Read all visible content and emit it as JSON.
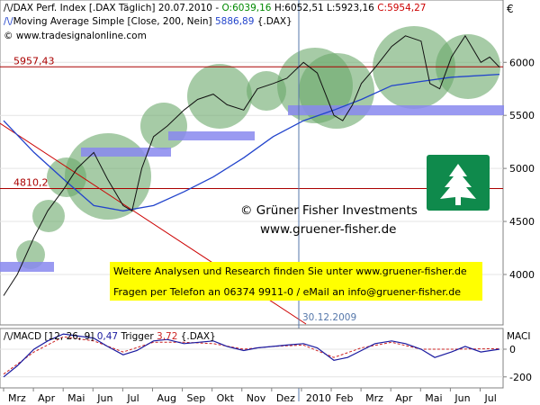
{
  "main_chart": {
    "legend": {
      "line1": {
        "prefix": "DAX Perf. Index [.DAX Täglich] 20.07.2010 - ",
        "open": "O:6039,16",
        "high": " H:6052,51",
        "low": " L:5923,16",
        "close": " C:5954,27"
      },
      "line2": {
        "label": "Moving Average Simple [Close, 200, Nein] ",
        "value": "5886,89",
        "suffix": " {.DAX}"
      },
      "line3": "© www.tradesignalonline.com"
    },
    "currency_symbol": "€",
    "level_labels": [
      "5957,43",
      "4810,2"
    ],
    "watermark": {
      "line1": "© Grüner Fisher Investments",
      "line2": "www.gruener-fisher.de"
    },
    "ad_box": {
      "line1": "Weitere Analysen und Research finden Sie unter www.gruener-fisher.de",
      "line2": "Fragen per Telefon an 06374 9911-0 / eMail an info@gruener-fisher.de"
    },
    "date_marker": "30.12.2009",
    "colors": {
      "price_line": "#111111",
      "moving_average": "#2244cc",
      "trend_line": "#cc0000",
      "level_line": "#aa0000",
      "circle_fill": "#6aa86a",
      "support_band": "#8888ee",
      "ad_box_fill": "#ffff00",
      "logo_green": "#0f8a4c"
    }
  },
  "macd_panel": {
    "legend": {
      "prefix": "MACD [12, 26, 9] ",
      "macd": "0,47",
      "trigger_label": " Trigger ",
      "trigger": "3,72",
      "suffix": " {.DAX}"
    },
    "title_right": "MACI",
    "colors": {
      "macd": "#1a1aa0",
      "trigger": "#cc2222"
    }
  },
  "x_axis": {
    "labels": [
      "Mrz",
      "Apr",
      "Mai",
      "Jun",
      "Jul",
      "Aug",
      "Sep",
      "Okt",
      "Nov",
      "Dez",
      "2010",
      "Feb",
      "Mrz",
      "Apr",
      "Mai",
      "Jun",
      "Jul"
    ]
  },
  "chart_data": {
    "type": "line",
    "title": "DAX Perf. Index [.DAX Täglich]",
    "y_axis_ticks": [
      4000,
      4500,
      5000,
      5500,
      6000
    ],
    "ylim": [
      3550,
      6520
    ],
    "price_series": {
      "name": "DAX Perf. Index",
      "x": [
        "2009-03-01",
        "2009-03-15",
        "2009-04-01",
        "2009-04-15",
        "2009-05-01",
        "2009-05-15",
        "2009-06-01",
        "2009-06-15",
        "2009-07-01",
        "2009-07-10",
        "2009-07-20",
        "2009-08-01",
        "2009-08-15",
        "2009-09-01",
        "2009-09-15",
        "2009-10-01",
        "2009-10-15",
        "2009-11-01",
        "2009-11-15",
        "2009-12-01",
        "2009-12-15",
        "2010-01-01",
        "2010-01-15",
        "2010-02-01",
        "2010-02-10",
        "2010-02-20",
        "2010-03-01",
        "2010-03-15",
        "2010-04-01",
        "2010-04-15",
        "2010-05-01",
        "2010-05-10",
        "2010-05-20",
        "2010-06-01",
        "2010-06-15",
        "2010-07-01",
        "2010-07-10",
        "2010-07-20"
      ],
      "values": [
        3800,
        4000,
        4350,
        4600,
        4800,
        5000,
        5150,
        4900,
        4650,
        4600,
        5000,
        5300,
        5400,
        5550,
        5650,
        5700,
        5600,
        5550,
        5750,
        5800,
        5850,
        6000,
        5900,
        5500,
        5450,
        5600,
        5800,
        5950,
        6150,
        6250,
        6200,
        5800,
        5750,
        6050,
        6250,
        6000,
        6050,
        5954
      ]
    },
    "moving_average": {
      "name": "Moving Average Simple [Close, 200, Nein]",
      "x": [
        "2009-03-01",
        "2009-04-01",
        "2009-05-01",
        "2009-06-01",
        "2009-07-01",
        "2009-08-01",
        "2009-09-01",
        "2009-10-01",
        "2009-11-01",
        "2009-12-01",
        "2010-01-01",
        "2010-02-01",
        "2010-03-01",
        "2010-04-01",
        "2010-05-01",
        "2010-06-01",
        "2010-07-20"
      ],
      "values": [
        5450,
        5150,
        4900,
        4650,
        4600,
        4650,
        4780,
        4920,
        5100,
        5300,
        5450,
        5550,
        5650,
        5780,
        5820,
        5860,
        5887
      ]
    },
    "horizontal_levels": [
      5957.43,
      4810.2
    ],
    "macd_ylim": [
      -260,
      130
    ],
    "macd_ticks": [
      0,
      -200
    ],
    "macd_series": {
      "name": "MACD [12, 26, 9]",
      "x": [
        "2009-03-01",
        "2009-03-15",
        "2009-04-01",
        "2009-04-15",
        "2009-05-01",
        "2009-06-01",
        "2009-06-15",
        "2009-07-01",
        "2009-07-15",
        "2009-08-01",
        "2009-08-15",
        "2009-09-01",
        "2009-10-01",
        "2009-10-15",
        "2009-11-01",
        "2009-11-15",
        "2009-12-01",
        "2009-12-15",
        "2010-01-01",
        "2010-01-15",
        "2010-02-01",
        "2010-02-15",
        "2010-03-01",
        "2010-03-15",
        "2010-04-01",
        "2010-04-15",
        "2010-05-01",
        "2010-05-15",
        "2010-06-01",
        "2010-06-15",
        "2010-07-01",
        "2010-07-20"
      ],
      "values": [
        -200,
        -120,
        0,
        60,
        110,
        80,
        20,
        -40,
        -10,
        60,
        70,
        40,
        60,
        20,
        -10,
        10,
        20,
        30,
        40,
        10,
        -80,
        -60,
        -10,
        40,
        60,
        40,
        0,
        -60,
        -20,
        20,
        -20,
        0
      ]
    },
    "trigger_series": {
      "name": "Trigger",
      "x": [
        "2009-03-01",
        "2009-04-01",
        "2009-05-01",
        "2009-06-01",
        "2009-07-01",
        "2009-08-01",
        "2009-09-01",
        "2009-10-01",
        "2009-11-01",
        "2009-12-01",
        "2010-01-01",
        "2010-02-01",
        "2010-03-01",
        "2010-04-01",
        "2010-05-01",
        "2010-06-01",
        "2010-07-20"
      ],
      "values": [
        -180,
        -20,
        90,
        60,
        -20,
        50,
        50,
        40,
        0,
        20,
        30,
        -60,
        10,
        50,
        0,
        0,
        4
      ]
    }
  }
}
